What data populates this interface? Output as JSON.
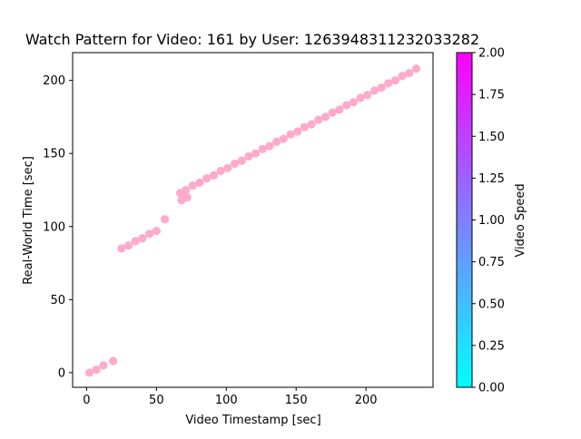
{
  "chart_data": {
    "type": "scatter",
    "title": "Watch Pattern for Video: 161 by User: 1263948311232033282",
    "xlabel": "Video Timestamp [sec]",
    "ylabel": "Real-World Time [sec]",
    "xlim": [
      -10,
      248
    ],
    "ylim": [
      -10,
      219
    ],
    "xticks": [
      0,
      50,
      100,
      150,
      200
    ],
    "yticks": [
      0,
      50,
      100,
      150,
      200
    ],
    "grid": false,
    "colorbar": {
      "label": "Video Speed",
      "range": [
        0,
        2
      ],
      "ticks": [
        "0.00",
        "0.25",
        "0.50",
        "0.75",
        "1.00",
        "1.25",
        "1.50",
        "1.75",
        "2.00"
      ],
      "colormap_start": "#00ffff",
      "colormap_end": "#ff00ff"
    },
    "marker_color": "#ffaacc",
    "points": [
      {
        "x": 2,
        "y": 0
      },
      {
        "x": 7,
        "y": 2
      },
      {
        "x": 12,
        "y": 5
      },
      {
        "x": 19,
        "y": 8
      },
      {
        "x": 25,
        "y": 85
      },
      {
        "x": 30,
        "y": 87
      },
      {
        "x": 35,
        "y": 90
      },
      {
        "x": 40,
        "y": 92
      },
      {
        "x": 45,
        "y": 95
      },
      {
        "x": 50,
        "y": 97
      },
      {
        "x": 56,
        "y": 105
      },
      {
        "x": 67,
        "y": 123
      },
      {
        "x": 68,
        "y": 118
      },
      {
        "x": 71,
        "y": 125
      },
      {
        "x": 72,
        "y": 120
      },
      {
        "x": 76,
        "y": 128
      },
      {
        "x": 81,
        "y": 130
      },
      {
        "x": 86,
        "y": 133
      },
      {
        "x": 91,
        "y": 135
      },
      {
        "x": 96,
        "y": 138
      },
      {
        "x": 101,
        "y": 140
      },
      {
        "x": 106,
        "y": 143
      },
      {
        "x": 111,
        "y": 145
      },
      {
        "x": 116,
        "y": 148
      },
      {
        "x": 121,
        "y": 150
      },
      {
        "x": 126,
        "y": 153
      },
      {
        "x": 131,
        "y": 155
      },
      {
        "x": 136,
        "y": 158
      },
      {
        "x": 141,
        "y": 160
      },
      {
        "x": 146,
        "y": 163
      },
      {
        "x": 151,
        "y": 165
      },
      {
        "x": 156,
        "y": 168
      },
      {
        "x": 161,
        "y": 170
      },
      {
        "x": 166,
        "y": 173
      },
      {
        "x": 171,
        "y": 175
      },
      {
        "x": 176,
        "y": 178
      },
      {
        "x": 181,
        "y": 180
      },
      {
        "x": 186,
        "y": 183
      },
      {
        "x": 191,
        "y": 185
      },
      {
        "x": 196,
        "y": 188
      },
      {
        "x": 201,
        "y": 190
      },
      {
        "x": 206,
        "y": 193
      },
      {
        "x": 211,
        "y": 195
      },
      {
        "x": 216,
        "y": 198
      },
      {
        "x": 221,
        "y": 200
      },
      {
        "x": 226,
        "y": 203
      },
      {
        "x": 231,
        "y": 205
      },
      {
        "x": 236,
        "y": 208
      }
    ]
  }
}
